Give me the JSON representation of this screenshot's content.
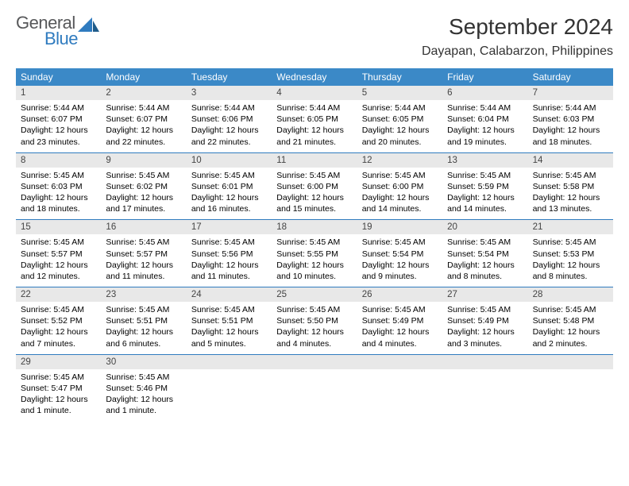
{
  "logo": {
    "general": "General",
    "blue": "Blue"
  },
  "colors": {
    "header_bg": "#3b89c7",
    "dayrow_bg": "#e8e8e8",
    "rule": "#2f7bbf",
    "logo_gray": "#57585a",
    "logo_blue": "#2f7bbf"
  },
  "title": "September 2024",
  "location": "Dayapan, Calabarzon, Philippines",
  "weekdays": [
    "Sunday",
    "Monday",
    "Tuesday",
    "Wednesday",
    "Thursday",
    "Friday",
    "Saturday"
  ],
  "weeks": [
    [
      {
        "n": "1",
        "sr": "Sunrise: 5:44 AM",
        "ss": "Sunset: 6:07 PM",
        "d1": "Daylight: 12 hours",
        "d2": "and 23 minutes."
      },
      {
        "n": "2",
        "sr": "Sunrise: 5:44 AM",
        "ss": "Sunset: 6:07 PM",
        "d1": "Daylight: 12 hours",
        "d2": "and 22 minutes."
      },
      {
        "n": "3",
        "sr": "Sunrise: 5:44 AM",
        "ss": "Sunset: 6:06 PM",
        "d1": "Daylight: 12 hours",
        "d2": "and 22 minutes."
      },
      {
        "n": "4",
        "sr": "Sunrise: 5:44 AM",
        "ss": "Sunset: 6:05 PM",
        "d1": "Daylight: 12 hours",
        "d2": "and 21 minutes."
      },
      {
        "n": "5",
        "sr": "Sunrise: 5:44 AM",
        "ss": "Sunset: 6:05 PM",
        "d1": "Daylight: 12 hours",
        "d2": "and 20 minutes."
      },
      {
        "n": "6",
        "sr": "Sunrise: 5:44 AM",
        "ss": "Sunset: 6:04 PM",
        "d1": "Daylight: 12 hours",
        "d2": "and 19 minutes."
      },
      {
        "n": "7",
        "sr": "Sunrise: 5:44 AM",
        "ss": "Sunset: 6:03 PM",
        "d1": "Daylight: 12 hours",
        "d2": "and 18 minutes."
      }
    ],
    [
      {
        "n": "8",
        "sr": "Sunrise: 5:45 AM",
        "ss": "Sunset: 6:03 PM",
        "d1": "Daylight: 12 hours",
        "d2": "and 18 minutes."
      },
      {
        "n": "9",
        "sr": "Sunrise: 5:45 AM",
        "ss": "Sunset: 6:02 PM",
        "d1": "Daylight: 12 hours",
        "d2": "and 17 minutes."
      },
      {
        "n": "10",
        "sr": "Sunrise: 5:45 AM",
        "ss": "Sunset: 6:01 PM",
        "d1": "Daylight: 12 hours",
        "d2": "and 16 minutes."
      },
      {
        "n": "11",
        "sr": "Sunrise: 5:45 AM",
        "ss": "Sunset: 6:00 PM",
        "d1": "Daylight: 12 hours",
        "d2": "and 15 minutes."
      },
      {
        "n": "12",
        "sr": "Sunrise: 5:45 AM",
        "ss": "Sunset: 6:00 PM",
        "d1": "Daylight: 12 hours",
        "d2": "and 14 minutes."
      },
      {
        "n": "13",
        "sr": "Sunrise: 5:45 AM",
        "ss": "Sunset: 5:59 PM",
        "d1": "Daylight: 12 hours",
        "d2": "and 14 minutes."
      },
      {
        "n": "14",
        "sr": "Sunrise: 5:45 AM",
        "ss": "Sunset: 5:58 PM",
        "d1": "Daylight: 12 hours",
        "d2": "and 13 minutes."
      }
    ],
    [
      {
        "n": "15",
        "sr": "Sunrise: 5:45 AM",
        "ss": "Sunset: 5:57 PM",
        "d1": "Daylight: 12 hours",
        "d2": "and 12 minutes."
      },
      {
        "n": "16",
        "sr": "Sunrise: 5:45 AM",
        "ss": "Sunset: 5:57 PM",
        "d1": "Daylight: 12 hours",
        "d2": "and 11 minutes."
      },
      {
        "n": "17",
        "sr": "Sunrise: 5:45 AM",
        "ss": "Sunset: 5:56 PM",
        "d1": "Daylight: 12 hours",
        "d2": "and 11 minutes."
      },
      {
        "n": "18",
        "sr": "Sunrise: 5:45 AM",
        "ss": "Sunset: 5:55 PM",
        "d1": "Daylight: 12 hours",
        "d2": "and 10 minutes."
      },
      {
        "n": "19",
        "sr": "Sunrise: 5:45 AM",
        "ss": "Sunset: 5:54 PM",
        "d1": "Daylight: 12 hours",
        "d2": "and 9 minutes."
      },
      {
        "n": "20",
        "sr": "Sunrise: 5:45 AM",
        "ss": "Sunset: 5:54 PM",
        "d1": "Daylight: 12 hours",
        "d2": "and 8 minutes."
      },
      {
        "n": "21",
        "sr": "Sunrise: 5:45 AM",
        "ss": "Sunset: 5:53 PM",
        "d1": "Daylight: 12 hours",
        "d2": "and 8 minutes."
      }
    ],
    [
      {
        "n": "22",
        "sr": "Sunrise: 5:45 AM",
        "ss": "Sunset: 5:52 PM",
        "d1": "Daylight: 12 hours",
        "d2": "and 7 minutes."
      },
      {
        "n": "23",
        "sr": "Sunrise: 5:45 AM",
        "ss": "Sunset: 5:51 PM",
        "d1": "Daylight: 12 hours",
        "d2": "and 6 minutes."
      },
      {
        "n": "24",
        "sr": "Sunrise: 5:45 AM",
        "ss": "Sunset: 5:51 PM",
        "d1": "Daylight: 12 hours",
        "d2": "and 5 minutes."
      },
      {
        "n": "25",
        "sr": "Sunrise: 5:45 AM",
        "ss": "Sunset: 5:50 PM",
        "d1": "Daylight: 12 hours",
        "d2": "and 4 minutes."
      },
      {
        "n": "26",
        "sr": "Sunrise: 5:45 AM",
        "ss": "Sunset: 5:49 PM",
        "d1": "Daylight: 12 hours",
        "d2": "and 4 minutes."
      },
      {
        "n": "27",
        "sr": "Sunrise: 5:45 AM",
        "ss": "Sunset: 5:49 PM",
        "d1": "Daylight: 12 hours",
        "d2": "and 3 minutes."
      },
      {
        "n": "28",
        "sr": "Sunrise: 5:45 AM",
        "ss": "Sunset: 5:48 PM",
        "d1": "Daylight: 12 hours",
        "d2": "and 2 minutes."
      }
    ],
    [
      {
        "n": "29",
        "sr": "Sunrise: 5:45 AM",
        "ss": "Sunset: 5:47 PM",
        "d1": "Daylight: 12 hours",
        "d2": "and 1 minute."
      },
      {
        "n": "30",
        "sr": "Sunrise: 5:45 AM",
        "ss": "Sunset: 5:46 PM",
        "d1": "Daylight: 12 hours",
        "d2": "and 1 minute."
      },
      null,
      null,
      null,
      null,
      null
    ]
  ]
}
